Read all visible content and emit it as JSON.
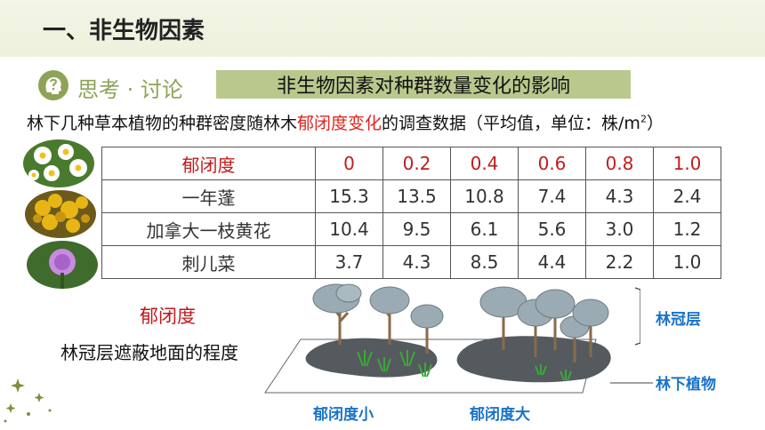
{
  "header": {
    "title": "一、非生物因素"
  },
  "think": {
    "label": "思考 · 讨论",
    "topic": "非生物因素对种群数量变化的影响"
  },
  "description": {
    "before": "林下几种草本植物的种群密度随林木",
    "highlight": "郁闭度变化",
    "after": "的调查数据（平均值，单位：株/m",
    "sup": "2",
    "close": "）"
  },
  "table": {
    "header": [
      "郁闭度",
      "0",
      "0.2",
      "0.4",
      "0.6",
      "0.8",
      "1.0"
    ],
    "rows": [
      [
        "一年蓬",
        "15.3",
        "13.5",
        "10.8",
        "7.4",
        "4.3",
        "2.4"
      ],
      [
        "加拿大一枝黄花",
        "10.4",
        "9.5",
        "6.1",
        "5.6",
        "3.0",
        "1.2"
      ],
      [
        "刺儿菜",
        "3.7",
        "4.3",
        "8.5",
        "4.4",
        "2.2",
        "1.0"
      ]
    ]
  },
  "term": {
    "label": "郁闭度",
    "definition": "林冠层遮蔽地面的程度"
  },
  "diagram": {
    "canopy_label": "林冠层",
    "understory_label": "林下植物",
    "low_label": "郁闭度小",
    "high_label": "郁闭度大"
  },
  "colors": {
    "accent_green": "#8ea357",
    "topic_bg": "#b9c98d",
    "red": "#e0231c",
    "annotation_blue": "#1a73c8"
  }
}
